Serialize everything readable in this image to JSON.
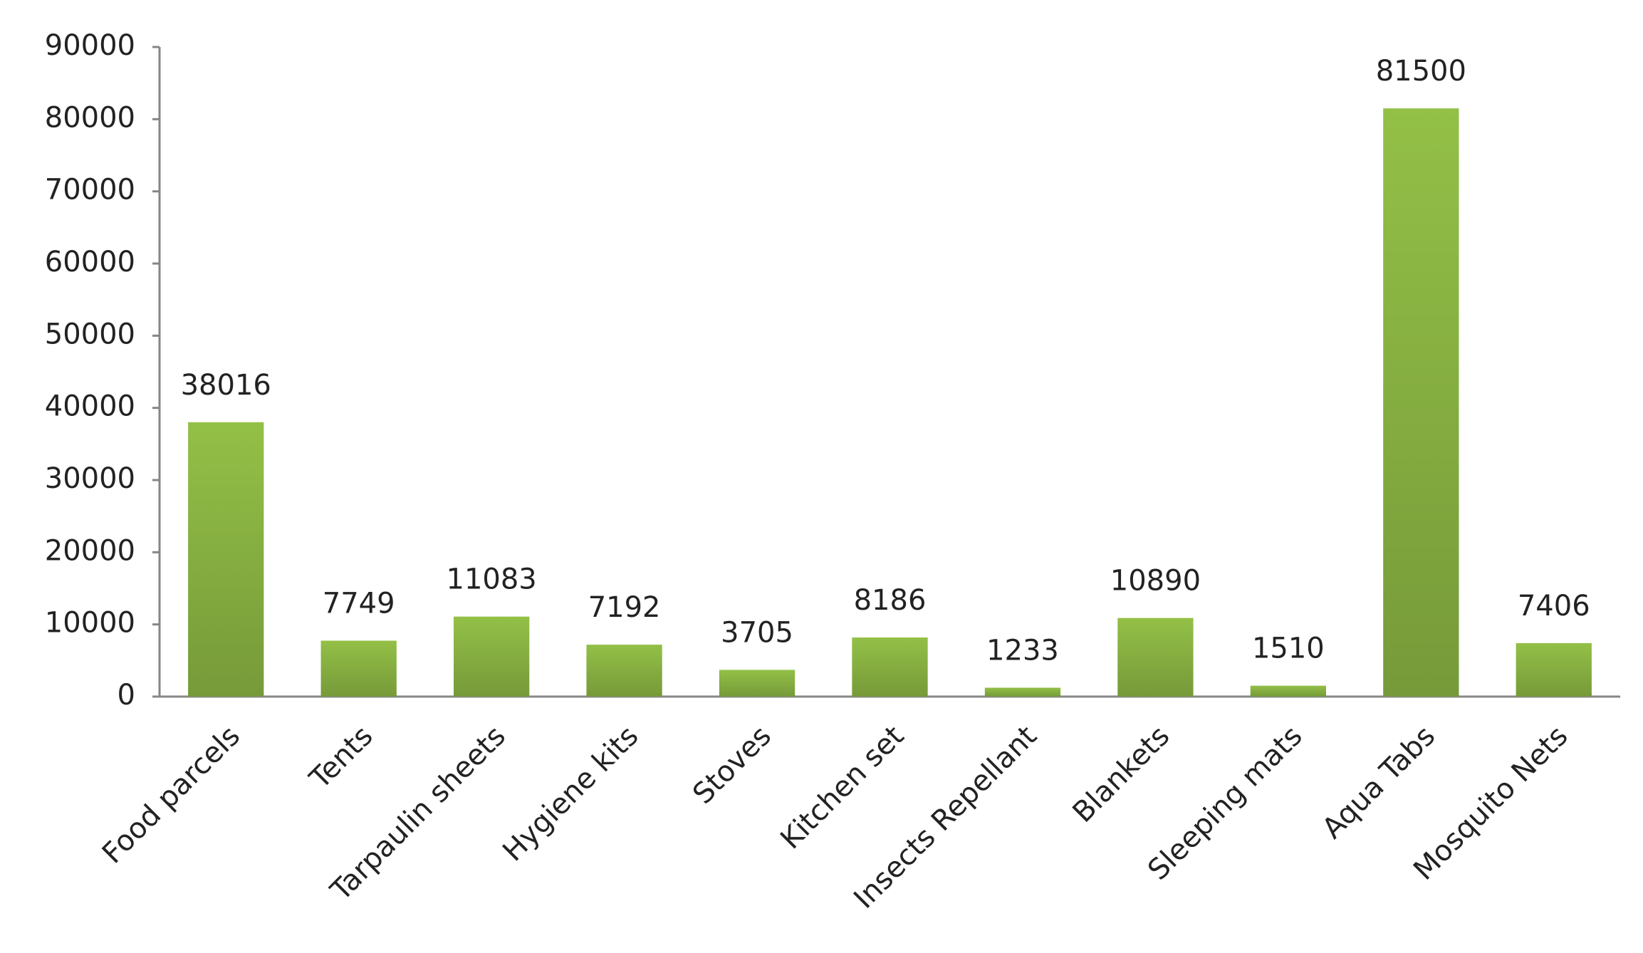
{
  "chart_data": {
    "type": "bar",
    "categories": [
      "Food parcels",
      "Tents",
      "Tarpaulin sheets",
      "Hygiene kits",
      "Stoves",
      "Kitchen set",
      "Insects Repellant",
      "Blankets",
      "Sleeping mats",
      "Aqua Tabs",
      "Mosquito Nets"
    ],
    "values": [
      38016,
      7749,
      11083,
      7192,
      3705,
      8186,
      1233,
      10890,
      1510,
      81500,
      7406
    ],
    "color": "#93c047",
    "ylim": [
      0,
      90000
    ],
    "yticks": [
      0,
      10000,
      20000,
      30000,
      40000,
      50000,
      60000,
      70000,
      80000,
      90000
    ],
    "grid": false
  }
}
